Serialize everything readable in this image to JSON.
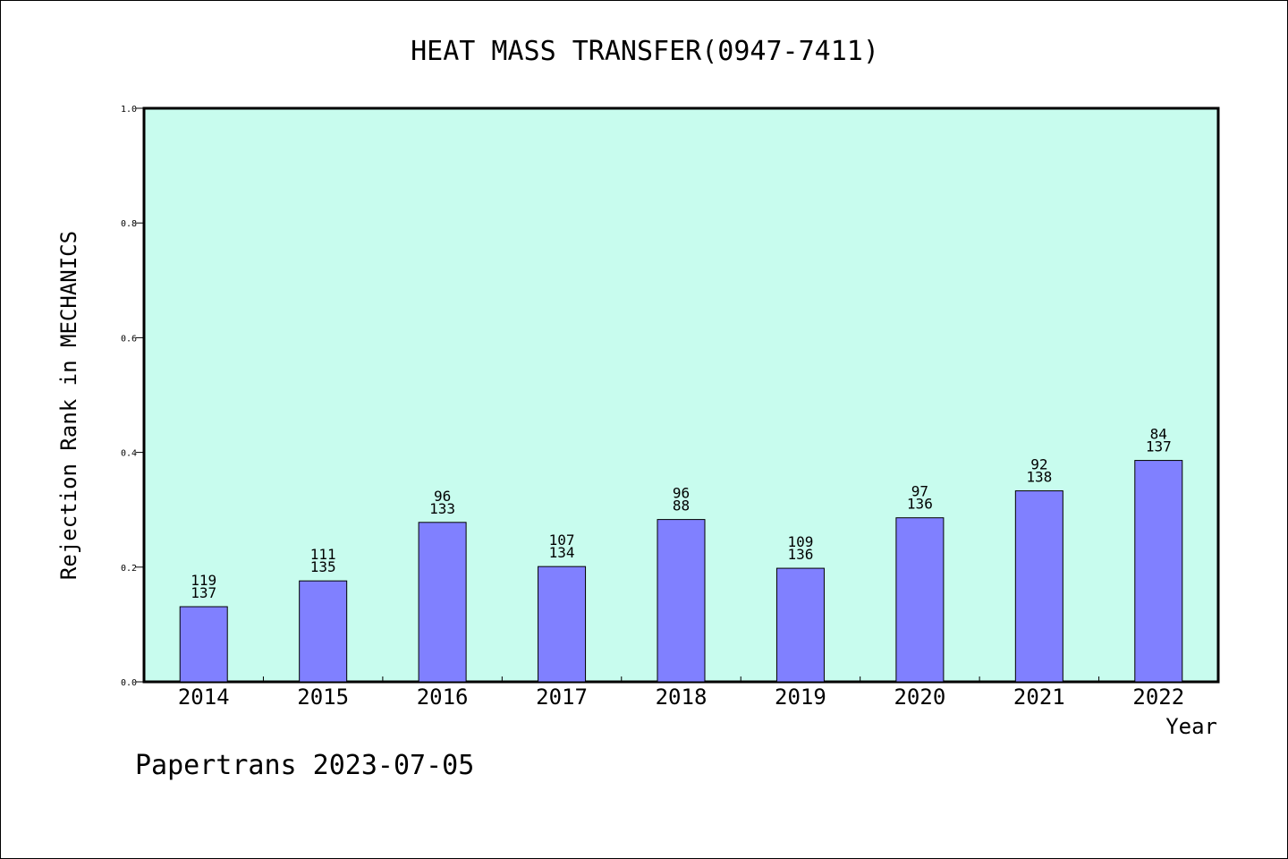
{
  "chart_data": {
    "type": "bar",
    "title": "HEAT MASS TRANSFER(0947-7411)",
    "xlabel": "Year",
    "ylabel": "Rejection Rank in MECHANICS",
    "categories": [
      "2014",
      "2015",
      "2016",
      "2017",
      "2018",
      "2019",
      "2020",
      "2021",
      "2022"
    ],
    "values": [
      0.131,
      0.176,
      0.278,
      0.201,
      0.283,
      0.198,
      0.286,
      0.333,
      0.386
    ],
    "bar_labels": [
      [
        "119",
        "137"
      ],
      [
        "111",
        "135"
      ],
      [
        "96",
        "133"
      ],
      [
        "107",
        "134"
      ],
      [
        "96",
        "88"
      ],
      [
        "109",
        "136"
      ],
      [
        "97",
        "136"
      ],
      [
        "92",
        "138"
      ],
      [
        "84",
        "137"
      ]
    ],
    "ylim": [
      0,
      1.0
    ],
    "yticks": [
      "0.0",
      "0.2",
      "0.4",
      "0.6",
      "0.8",
      "1.0"
    ],
    "grid": false,
    "colors": {
      "plot_background": "#c8fcee",
      "bar_fill": "#8080ff",
      "bar_stroke": "#000000"
    }
  },
  "footer": {
    "text": "Papertrans 2023-07-05"
  }
}
